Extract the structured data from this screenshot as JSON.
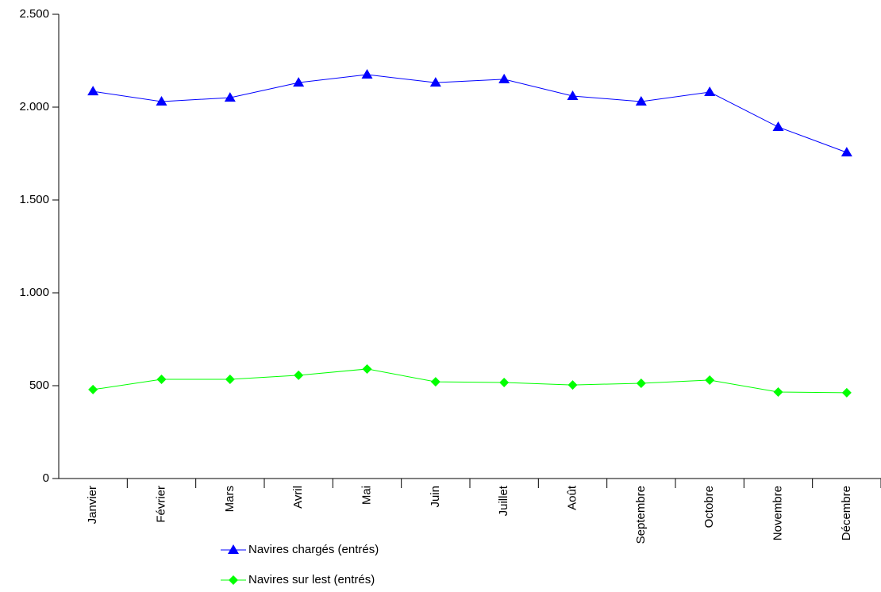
{
  "chart_data": {
    "type": "line",
    "categories": [
      "Janvier",
      "Février",
      "Mars",
      "Avril",
      "Mai",
      "Juin",
      "Juillet",
      "Août",
      "Septembre",
      "Octobre",
      "Novembre",
      "Décembre"
    ],
    "series": [
      {
        "name": "Navires chargés (entrés)",
        "color": "#0000ff",
        "marker": "triangle",
        "values": [
          2085,
          2030,
          2051,
          2132,
          2175,
          2132,
          2150,
          2060,
          2030,
          2081,
          1893,
          1756
        ]
      },
      {
        "name": "Navires sur lest (entrés)",
        "color": "#00ff00",
        "marker": "diamond",
        "values": [
          479,
          534,
          534,
          556,
          590,
          521,
          517,
          504,
          513,
          530,
          466,
          462
        ]
      }
    ],
    "ylim": [
      0,
      2500
    ],
    "yticks": [
      0,
      500,
      {
        "value": 1000,
        "label": "1.000"
      },
      {
        "value": 1500,
        "label": "1.500"
      },
      {
        "value": 2000,
        "label": "2.000"
      },
      {
        "value": 2500,
        "label": "2.500"
      }
    ],
    "legend": "bottom"
  }
}
